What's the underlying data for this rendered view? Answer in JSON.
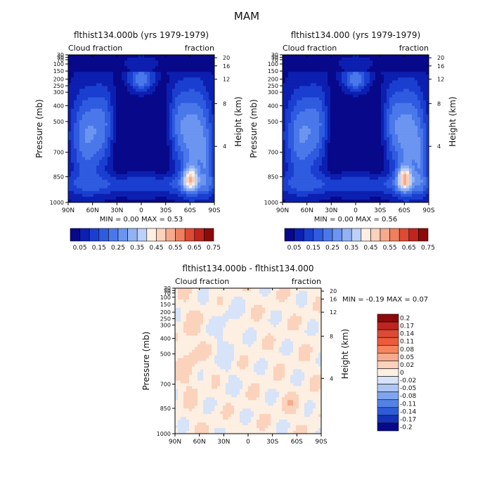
{
  "figure": {
    "title": "MAM"
  },
  "chart_data": [
    {
      "type": "heatmap",
      "title": "flthist134.000b (yrs 1979-1979)",
      "left_label": "Cloud fraction",
      "right_label": "fraction",
      "xlabel": "",
      "ylabel": "Pressure (mb)",
      "y2label": "Height (km)",
      "x_ticks": [
        "90N",
        "60N",
        "30N",
        "0",
        "30S",
        "60S",
        "90S"
      ],
      "x_values": [
        90,
        60,
        30,
        0,
        -30,
        -60,
        -90
      ],
      "y_ticks": [
        "30",
        "50",
        "70",
        "100",
        "150",
        "200",
        "250",
        "300",
        "400",
        "500",
        "700",
        "850",
        "1000"
      ],
      "y_values": [
        30,
        50,
        70,
        100,
        150,
        200,
        250,
        300,
        400,
        500,
        700,
        850,
        1000
      ],
      "y2_ticks": [
        "20",
        "16",
        "12",
        "8",
        "4"
      ],
      "y2_values": [
        20,
        16,
        12,
        8,
        4
      ],
      "stats_text": "MIN =   0.00   MAX =   0.53",
      "min": 0.0,
      "max": 0.53,
      "colorbar": {
        "orientation": "horizontal",
        "levels": [
          0.05,
          0.1,
          0.15,
          0.2,
          0.25,
          0.3,
          0.35,
          0.4,
          0.45,
          0.5,
          0.55,
          0.6,
          0.65,
          0.7,
          0.75
        ],
        "labels": [
          "0.05",
          "0.15",
          "0.25",
          "0.35",
          "0.45",
          "0.55",
          "0.65",
          "0.75"
        ],
        "colors": [
          "#08088a",
          "#0c1fb0",
          "#1a3fd0",
          "#2f5be0",
          "#4a78ea",
          "#6b95f0",
          "#92b2f4",
          "#bcd0f8",
          "#fdefe2",
          "#fbd2bc",
          "#f7ab8e",
          "#ef7f5e",
          "#dd4a35",
          "#c0241e",
          "#8c0a0a"
        ]
      }
    },
    {
      "type": "heatmap",
      "title": "flthist134.000 (yrs 1979-1979)",
      "left_label": "Cloud fraction",
      "right_label": "fraction",
      "xlabel": "",
      "ylabel": "Pressure (mb)",
      "y2label": "Height (km)",
      "x_ticks": [
        "90N",
        "60N",
        "30N",
        "0",
        "30S",
        "60S",
        "90S"
      ],
      "x_values": [
        90,
        60,
        30,
        0,
        -30,
        -60,
        -90
      ],
      "y_ticks": [
        "30",
        "50",
        "70",
        "100",
        "150",
        "200",
        "250",
        "300",
        "400",
        "500",
        "700",
        "850",
        "1000"
      ],
      "y_values": [
        30,
        50,
        70,
        100,
        150,
        200,
        250,
        300,
        400,
        500,
        700,
        850,
        1000
      ],
      "y2_ticks": [
        "20",
        "16",
        "12",
        "8",
        "4"
      ],
      "y2_values": [
        20,
        16,
        12,
        8,
        4
      ],
      "stats_text": "MIN =   0.00   MAX =   0.56",
      "min": 0.0,
      "max": 0.56,
      "colorbar": {
        "orientation": "horizontal",
        "levels": [
          0.05,
          0.1,
          0.15,
          0.2,
          0.25,
          0.3,
          0.35,
          0.4,
          0.45,
          0.5,
          0.55,
          0.6,
          0.65,
          0.7,
          0.75
        ],
        "labels": [
          "0.05",
          "0.15",
          "0.25",
          "0.35",
          "0.45",
          "0.55",
          "0.65",
          "0.75"
        ],
        "colors": [
          "#08088a",
          "#0c1fb0",
          "#1a3fd0",
          "#2f5be0",
          "#4a78ea",
          "#6b95f0",
          "#92b2f4",
          "#bcd0f8",
          "#fdefe2",
          "#fbd2bc",
          "#f7ab8e",
          "#ef7f5e",
          "#dd4a35",
          "#c0241e",
          "#8c0a0a"
        ]
      }
    },
    {
      "type": "heatmap",
      "title": "flthist134.000b - flthist134.000",
      "left_label": "Cloud fraction",
      "right_label": "fraction",
      "xlabel": "",
      "ylabel": "Pressure (mb)",
      "y2label": "Height (km)",
      "x_ticks": [
        "90N",
        "60N",
        "30N",
        "0",
        "30S",
        "60S",
        "90S"
      ],
      "x_values": [
        90,
        60,
        30,
        0,
        -30,
        -60,
        -90
      ],
      "y_ticks": [
        "30",
        "50",
        "70",
        "100",
        "150",
        "200",
        "250",
        "300",
        "400",
        "500",
        "700",
        "850",
        "1000"
      ],
      "y_values": [
        30,
        50,
        70,
        100,
        150,
        200,
        250,
        300,
        400,
        500,
        700,
        850,
        1000
      ],
      "y2_ticks": [
        "20",
        "16",
        "12",
        "8",
        "4"
      ],
      "y2_values": [
        20,
        16,
        12,
        8,
        4
      ],
      "stats_text": "MIN =   -0.19   MAX =    0.07",
      "min": -0.19,
      "max": 0.07,
      "colorbar": {
        "orientation": "vertical",
        "labels": [
          "0.2",
          "0.17",
          "0.14",
          "0.11",
          "0.08",
          "0.05",
          "0.02",
          "0",
          "-0.02",
          "-0.05",
          "-0.08",
          "-0.11",
          "-0.14",
          "-0.17",
          "-0.2"
        ],
        "colors": [
          "#8c0a0a",
          "#c0241e",
          "#dd4a35",
          "#ef5a3a",
          "#f5855e",
          "#f7ab8e",
          "#fbd2bc",
          "#fdefe2",
          "#d6e3f8",
          "#adc7f3",
          "#7fa5ee",
          "#5482e6",
          "#2e5cd8",
          "#1433b8",
          "#08088a"
        ]
      }
    }
  ]
}
